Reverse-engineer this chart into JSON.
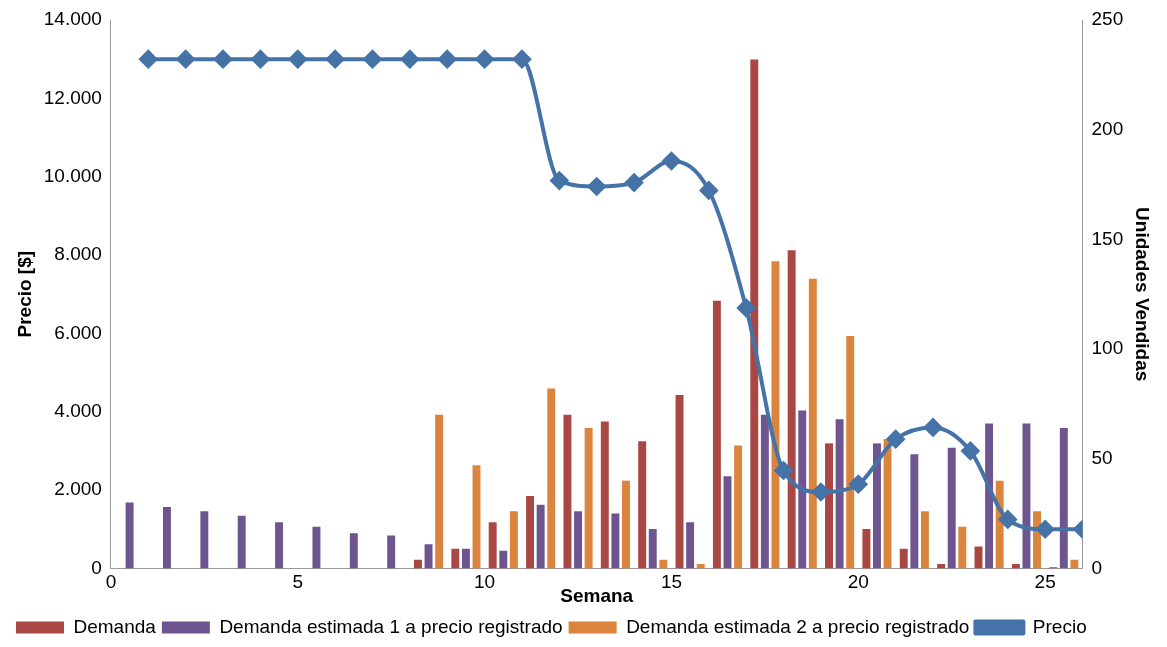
{
  "chart_data": {
    "type": "bar",
    "xlabel": "Semana",
    "ylabel": "Precio [$]",
    "y2label": "Unidades Vendidas",
    "xlim": [
      0,
      26
    ],
    "xticks": [
      0,
      5,
      10,
      15,
      20,
      25
    ],
    "ylim": [
      0,
      14000
    ],
    "yticks": [
      {
        "value": 0,
        "label": "0"
      },
      {
        "value": 2000,
        "label": "2.000"
      },
      {
        "value": 4000,
        "label": "4.000"
      },
      {
        "value": 6000,
        "label": "6.000"
      },
      {
        "value": 8000,
        "label": "8.000"
      },
      {
        "value": 10000,
        "label": "10.000"
      },
      {
        "value": 12000,
        "label": "12.000"
      },
      {
        "value": 14000,
        "label": "14.000"
      }
    ],
    "y2lim": [
      0,
      250
    ],
    "y2ticks": [
      0,
      50,
      100,
      150,
      200,
      250
    ],
    "grid": false,
    "legend": "bottom",
    "marker": "diamond",
    "line_style": "solid",
    "series": [
      {
        "name": "Demanda",
        "axis": "y2",
        "color": "#a94744",
        "x": [
          0.5,
          1.5,
          2.5,
          3.5,
          4.5,
          5.5,
          6.5,
          7.5,
          8.5,
          9.5,
          10.5,
          11.5,
          12.5,
          13.5,
          14.5,
          15.5,
          16.5,
          17.5,
          18.5,
          19.5,
          20.5,
          21.5,
          22.5,
          23.5,
          24.5,
          25.5
        ],
        "values": [
          0,
          0,
          0,
          0,
          0,
          0,
          0,
          0,
          4,
          9,
          21,
          33,
          70,
          67,
          58,
          79,
          122,
          232,
          145,
          57,
          18,
          9,
          2,
          10,
          2,
          0.5
        ]
      },
      {
        "name": "Demanda estimada 1 a precio registrado",
        "axis": "y2",
        "color": "#6f5590",
        "x": [
          0.5,
          1.5,
          2.5,
          3.5,
          4.5,
          5.5,
          6.5,
          7.5,
          8.5,
          9.5,
          10.5,
          11.5,
          12.5,
          13.5,
          14.5,
          15.5,
          16.5,
          17.5,
          18.5,
          19.5,
          20.5,
          21.5,
          22.5,
          23.5,
          24.5,
          25.5
        ],
        "values": [
          30,
          28,
          26,
          24,
          21,
          19,
          16,
          15,
          11,
          9,
          8,
          29,
          26,
          25,
          18,
          21,
          42,
          70,
          72,
          68,
          57,
          52,
          55,
          66,
          66,
          64
        ]
      },
      {
        "name": "Demanda estimada 2 a precio registrado",
        "axis": "y2",
        "color": "#db843d",
        "x": [
          0.5,
          1.5,
          2.5,
          3.5,
          4.5,
          5.5,
          6.5,
          7.5,
          8.5,
          9.5,
          10.5,
          11.5,
          12.5,
          13.5,
          14.5,
          15.5,
          16.5,
          17.5,
          18.5,
          19.5,
          20.5,
          21.5,
          22.5,
          23.5,
          24.5,
          25.5
        ],
        "values": [
          0,
          0,
          0,
          0,
          0,
          0,
          0,
          0,
          70,
          47,
          26,
          82,
          64,
          40,
          4,
          2,
          56,
          140,
          132,
          106,
          59,
          26,
          19,
          40,
          26,
          4
        ]
      },
      {
        "name": "Precio",
        "type": "line",
        "color": "#4573a7",
        "x": [
          1,
          2,
          3,
          4,
          5,
          6,
          7,
          8,
          9,
          10,
          11,
          12,
          13,
          14,
          15,
          16,
          17,
          18,
          19,
          20,
          21,
          22,
          23,
          24,
          25,
          26
        ],
        "values": [
          13000,
          13000,
          13000,
          13000,
          13000,
          13000,
          13000,
          13000,
          13000,
          13000,
          13000,
          9900,
          9750,
          9850,
          10400,
          9650,
          6650,
          2500,
          1950,
          2150,
          3300,
          3600,
          3000,
          1250,
          1000,
          1000
        ]
      }
    ]
  }
}
